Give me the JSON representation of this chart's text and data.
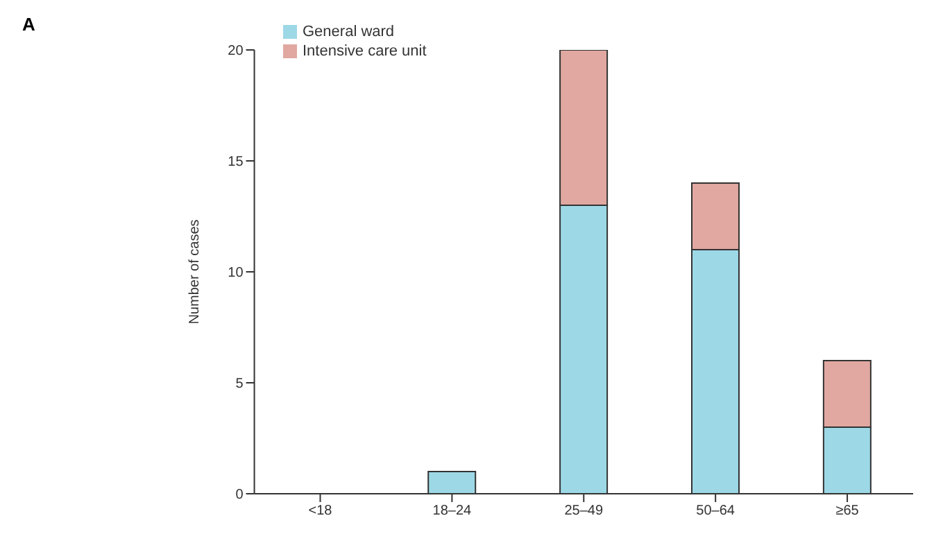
{
  "chart_data": {
    "type": "bar",
    "title": "A",
    "ylabel": "Number of cases",
    "categories": [
      "<18",
      "18–24",
      "25–49",
      "50–64",
      "≥65"
    ],
    "stacked": true,
    "series": [
      {
        "name": "General ward",
        "color": "#9dd8e6",
        "values": [
          0,
          1,
          13,
          11,
          3
        ]
      },
      {
        "name": "Intensive care unit",
        "color": "#e0a8a0",
        "values": [
          0,
          0,
          7,
          3,
          3
        ]
      }
    ],
    "ylim": [
      0,
      20
    ],
    "yticks": [
      0,
      5,
      10,
      15,
      20
    ],
    "grid": false,
    "legend": "top left"
  }
}
